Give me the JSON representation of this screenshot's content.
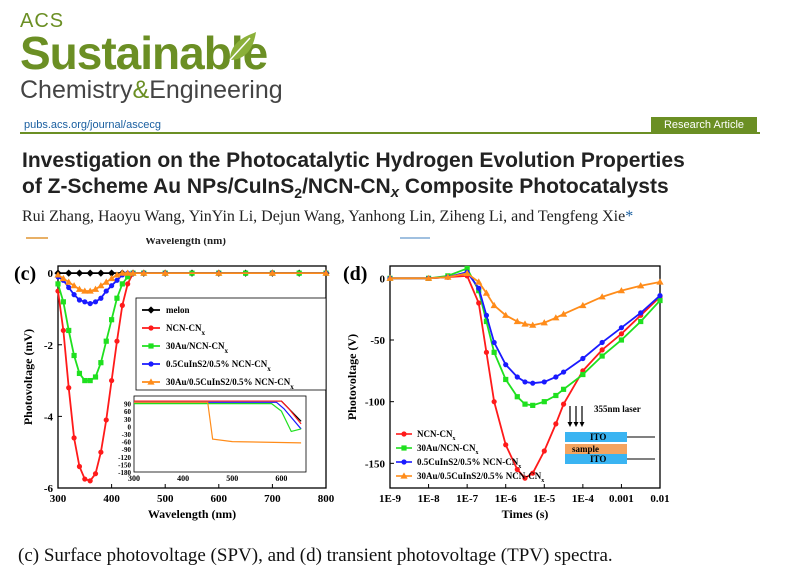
{
  "header": {
    "journal_small": "ACS",
    "journal_big": "Sustainable",
    "journal_sub_a": "Chemistry",
    "journal_sub_amp": "&",
    "journal_sub_b": "Engineering",
    "url": "pubs.acs.org/journal/ascecg",
    "badge": "Research Article"
  },
  "paper": {
    "title_line1": "Investigation on the Photocatalytic Hydrogen Evolution Properties",
    "title_line2_a": "of Z-Scheme Au NPs/CuInS",
    "title_line2_sub": "2",
    "title_line2_b": "/NCN-CN",
    "title_line2_x": "x",
    "title_line2_c": " Composite Photocatalysts",
    "authors": "Rui Zhang, Haoyu Wang, YinYin Li, Dejun Wang, Yanhong Lin, Ziheng Li, and Tengfeng Xie",
    "author_star": "*",
    "cut_label": "Wavelength (nm)",
    "caption": "(c) Surface photovoltage (SPV), and (d) transient photovoltage (TPV) spectra."
  },
  "colors": {
    "brand": "#6b8f24",
    "melon": "#000000",
    "ncn": "#ff1a1a",
    "au": "#1fe01f",
    "cuins": "#1a1aff",
    "tri": "#ff8c1a"
  },
  "chart_data": [
    {
      "panel": "(c)",
      "type": "line",
      "xlabel": "Wavelength (nm)",
      "ylabel": "Photovoltage (mV)",
      "xlim": [
        300,
        800
      ],
      "ylim": [
        -6,
        0.2
      ],
      "xticks": [
        "300",
        "400",
        "500",
        "600",
        "700",
        "800"
      ],
      "yticks": [
        "0",
        "-2",
        "-4",
        "-6"
      ],
      "legend_position": "top-right",
      "series": [
        {
          "name": "melon",
          "color": "#000000",
          "marker": "diamond",
          "x": [
            300,
            320,
            340,
            360,
            380,
            400,
            420,
            440,
            460,
            500,
            550,
            600,
            650,
            700,
            750,
            800
          ],
          "y": [
            0,
            0,
            0,
            0,
            0,
            0,
            0,
            0,
            0,
            0,
            0,
            0,
            0,
            0,
            0,
            0
          ]
        },
        {
          "name": "NCN-CN",
          "sub": "x",
          "color": "#ff1a1a",
          "marker": "circle",
          "x": [
            300,
            310,
            320,
            330,
            340,
            350,
            360,
            370,
            380,
            390,
            400,
            410,
            420,
            430,
            440,
            460,
            500,
            550,
            600,
            650,
            700,
            750,
            800
          ],
          "y": [
            -0.5,
            -1.6,
            -3.2,
            -4.6,
            -5.4,
            -5.75,
            -5.8,
            -5.6,
            -5.0,
            -4.1,
            -3.0,
            -1.9,
            -0.9,
            -0.3,
            0,
            0,
            0,
            0,
            0,
            0,
            0,
            0,
            0
          ]
        },
        {
          "name": "30Au/NCN-CN",
          "sub": "x",
          "color": "#1fe01f",
          "marker": "square",
          "x": [
            300,
            310,
            320,
            330,
            340,
            350,
            360,
            370,
            380,
            390,
            400,
            410,
            420,
            430,
            440,
            460,
            500,
            550,
            600,
            650,
            700,
            750,
            800
          ],
          "y": [
            -0.3,
            -0.8,
            -1.6,
            -2.3,
            -2.8,
            -3.0,
            -3.0,
            -2.9,
            -2.5,
            -1.9,
            -1.3,
            -0.7,
            -0.3,
            -0.1,
            0,
            0,
            0,
            0,
            0,
            0,
            0,
            0,
            0
          ]
        },
        {
          "name": "0.5CuInS2/0.5% NCN-CN",
          "sub": "x",
          "color": "#1a1aff",
          "marker": "circle",
          "x": [
            300,
            310,
            320,
            330,
            340,
            350,
            360,
            370,
            380,
            390,
            400,
            410,
            420,
            430,
            440,
            460,
            500,
            600,
            700,
            800
          ],
          "y": [
            -0.1,
            -0.2,
            -0.4,
            -0.6,
            -0.75,
            -0.8,
            -0.85,
            -0.8,
            -0.7,
            -0.5,
            -0.35,
            -0.2,
            -0.05,
            0,
            0,
            0,
            0,
            0,
            0,
            0
          ]
        },
        {
          "name": "30Au/0.5CuInS2/0.5% NCN-CN",
          "sub": "x",
          "color": "#ff8c1a",
          "marker": "triangle",
          "x": [
            300,
            310,
            320,
            330,
            340,
            350,
            360,
            370,
            380,
            390,
            400,
            410,
            420,
            430,
            440,
            460,
            500,
            600,
            700,
            800
          ],
          "y": [
            -0.05,
            -0.15,
            -0.25,
            -0.35,
            -0.45,
            -0.5,
            -0.5,
            -0.45,
            -0.35,
            -0.25,
            -0.15,
            -0.05,
            0,
            0,
            0,
            0,
            0,
            0,
            0,
            0
          ]
        }
      ],
      "inset": {
        "xlim": [
          300,
          650
        ],
        "ylim": [
          -180,
          120
        ],
        "xticks": [
          "300",
          "400",
          "500",
          "600"
        ],
        "yticks": [
          "90",
          "60",
          "30",
          "0",
          "-30",
          "-60",
          "-90",
          "-120",
          "-150",
          "-180"
        ]
      }
    },
    {
      "panel": "(d)",
      "type": "line",
      "xlabel": "Times (s)",
      "ylabel": "Photovoltage (V)",
      "xscale": "log",
      "xlim": [
        "1E-9",
        "0.01"
      ],
      "ylim": [
        -170,
        10
      ],
      "xticks": [
        "1E-9",
        "1E-8",
        "1E-7",
        "1E-6",
        "1E-5",
        "1E-4",
        "0.001",
        "0.01"
      ],
      "yticks": [
        "0",
        "-50",
        "-100",
        "-150"
      ],
      "legend_position": "bottom-left",
      "series": [
        {
          "name": "NCN-CN",
          "sub": "x",
          "color": "#ff1a1a",
          "logx": [
            -9,
            -8,
            -7.5,
            -7,
            -6.7,
            -6.5,
            -6.3,
            -6,
            -5.7,
            -5.5,
            -5.3,
            -5,
            -4.7,
            -4.5,
            -4,
            -3.5,
            -3,
            -2.5,
            -2
          ],
          "y": [
            0,
            0,
            1,
            2,
            -20,
            -60,
            -100,
            -135,
            -155,
            -162,
            -158,
            -140,
            -118,
            -102,
            -75,
            -58,
            -45,
            -30,
            -15
          ]
        },
        {
          "name": "30Au/NCN-CN",
          "sub": "x",
          "color": "#1fe01f",
          "logx": [
            -9,
            -8,
            -7.5,
            -7,
            -6.7,
            -6.5,
            -6.3,
            -6,
            -5.7,
            -5.5,
            -5.3,
            -5,
            -4.7,
            -4.5,
            -4,
            -3.5,
            -3,
            -2.5,
            -2
          ],
          "y": [
            0,
            0,
            2,
            8,
            -10,
            -35,
            -60,
            -82,
            -96,
            -102,
            -103,
            -100,
            -95,
            -90,
            -78,
            -63,
            -50,
            -35,
            -18
          ]
        },
        {
          "name": "0.5CuInS2/0.5% NCN-CN",
          "sub": "x",
          "color": "#1a1aff",
          "logx": [
            -9,
            -8,
            -7.5,
            -7,
            -6.7,
            -6.5,
            -6.3,
            -6,
            -5.7,
            -5.5,
            -5.3,
            -5,
            -4.7,
            -4.5,
            -4,
            -3.5,
            -3,
            -2.5,
            -2
          ],
          "y": [
            0,
            0,
            1,
            5,
            -8,
            -30,
            -52,
            -70,
            -80,
            -84,
            -85,
            -84,
            -80,
            -76,
            -65,
            -52,
            -40,
            -28,
            -14
          ]
        },
        {
          "name": "30Au/0.5CuInS2/0.5% NCN-CN",
          "sub": "x",
          "color": "#ff8c1a",
          "logx": [
            -9,
            -8,
            -7.5,
            -7,
            -6.7,
            -6.5,
            -6.3,
            -6,
            -5.7,
            -5.5,
            -5.3,
            -5,
            -4.7,
            -4.5,
            -4,
            -3.5,
            -3,
            -2.5,
            -2
          ],
          "y": [
            0,
            0,
            1,
            4,
            -3,
            -12,
            -22,
            -30,
            -35,
            -37,
            -38,
            -36,
            -32,
            -29,
            -22,
            -15,
            -10,
            -6,
            -3
          ]
        }
      ],
      "inset_label": "355nm laser",
      "inset_layers": [
        "ITO",
        "sample",
        "ITO"
      ]
    }
  ]
}
